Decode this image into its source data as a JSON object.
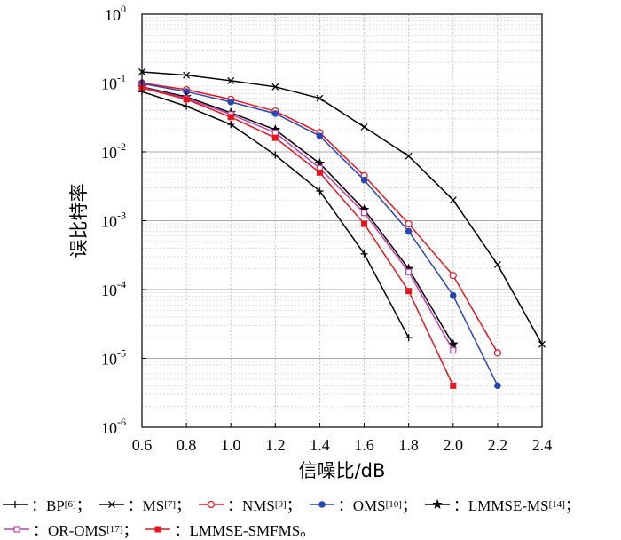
{
  "chart_data": {
    "type": "line",
    "xlabel": "信噪比/dB",
    "ylabel": "误比特率",
    "xlim": [
      0.6,
      2.4
    ],
    "ylim": [
      1e-06,
      1
    ],
    "yscale": "log",
    "grid": true,
    "x_ticks": [
      "0.6",
      "0.8",
      "1.0",
      "1.2",
      "1.4",
      "1.6",
      "1.8",
      "2.0",
      "2.2",
      "2.4"
    ],
    "y_ticks": [
      {
        "base": "10",
        "exp": "0"
      },
      {
        "base": "10",
        "exp": "-1"
      },
      {
        "base": "10",
        "exp": "-2"
      },
      {
        "base": "10",
        "exp": "-3"
      },
      {
        "base": "10",
        "exp": "-4"
      },
      {
        "base": "10",
        "exp": "-5"
      },
      {
        "base": "10",
        "exp": "-6"
      }
    ],
    "series": [
      {
        "name": "BP",
        "ref": "[6]",
        "color": "#000000",
        "marker": "plus",
        "x": [
          0.6,
          0.8,
          1.0,
          1.2,
          1.4,
          1.6,
          1.8
        ],
        "y": [
          0.075,
          0.046,
          0.025,
          0.009,
          0.0027,
          0.00033,
          2e-05
        ]
      },
      {
        "name": "MS",
        "ref": "[7]",
        "color": "#000000",
        "marker": "x",
        "x": [
          0.6,
          0.8,
          1.0,
          1.2,
          1.4,
          1.6,
          1.8,
          2.0,
          2.2,
          2.4
        ],
        "y": [
          0.145,
          0.13,
          0.108,
          0.088,
          0.06,
          0.023,
          0.0087,
          0.002,
          0.00023,
          1.6e-05
        ]
      },
      {
        "name": "NMS",
        "ref": "[9]",
        "color": "#e8141e",
        "marker": "circle-open",
        "x": [
          0.6,
          0.8,
          1.0,
          1.2,
          1.4,
          1.6,
          1.8,
          2.0,
          2.2
        ],
        "y": [
          0.1,
          0.08,
          0.058,
          0.039,
          0.019,
          0.0045,
          0.0009,
          0.00016,
          1.2e-05
        ]
      },
      {
        "name": "OMS",
        "ref": "[10]",
        "color": "#2a46b0",
        "marker": "circle-filled",
        "x": [
          0.6,
          0.8,
          1.0,
          1.2,
          1.4,
          1.6,
          1.8,
          2.0,
          2.2
        ],
        "y": [
          0.098,
          0.075,
          0.053,
          0.036,
          0.017,
          0.0039,
          0.0007,
          8.2e-05,
          4e-06
        ]
      },
      {
        "name": "LMMSE-MS",
        "ref": "[14]",
        "color": "#000000",
        "marker": "star",
        "x": [
          0.6,
          0.8,
          1.0,
          1.2,
          1.4,
          1.6,
          1.8,
          2.0
        ],
        "y": [
          0.088,
          0.063,
          0.037,
          0.021,
          0.0068,
          0.00145,
          0.0002,
          1.6e-05
        ]
      },
      {
        "name": "OR-OMS",
        "ref": "[17]",
        "color": "#c040b0",
        "marker": "square-open",
        "x": [
          0.6,
          0.8,
          1.0,
          1.2,
          1.4,
          1.6,
          1.8,
          2.0
        ],
        "y": [
          0.087,
          0.06,
          0.035,
          0.019,
          0.0058,
          0.0013,
          0.00018,
          1.3e-05
        ]
      },
      {
        "name": "LMMSE-SMFMS",
        "ref": "",
        "color": "#e8141e",
        "marker": "square-filled",
        "x": [
          0.6,
          0.8,
          1.0,
          1.2,
          1.4,
          1.6,
          1.8,
          2.0
        ],
        "y": [
          0.085,
          0.058,
          0.032,
          0.016,
          0.005,
          0.0009,
          9.5e-05,
          4e-06
        ]
      }
    ],
    "legend": {
      "placement": "bottom",
      "rows": [
        [
          {
            "series": 0,
            "label": "：BP",
            "ref": "[6]",
            "sep": "；"
          },
          {
            "series": 1,
            "label": "：MS",
            "ref": "[7]",
            "sep": "；"
          },
          {
            "series": 2,
            "label": "：NMS",
            "ref": "[9]",
            "sep": "；"
          },
          {
            "series": 3,
            "label": "：OMS",
            "ref": "[10]",
            "sep": "；"
          },
          {
            "series": 4,
            "label": "：LMMSE-MS",
            "ref": "[14]",
            "sep": "；"
          }
        ],
        [
          {
            "series": 5,
            "label": "：OR-OMS",
            "ref": "[17]",
            "sep": "；"
          },
          {
            "series": 6,
            "label": "：LMMSE-SMFMS",
            "ref": "",
            "sep": "。"
          }
        ]
      ]
    }
  }
}
